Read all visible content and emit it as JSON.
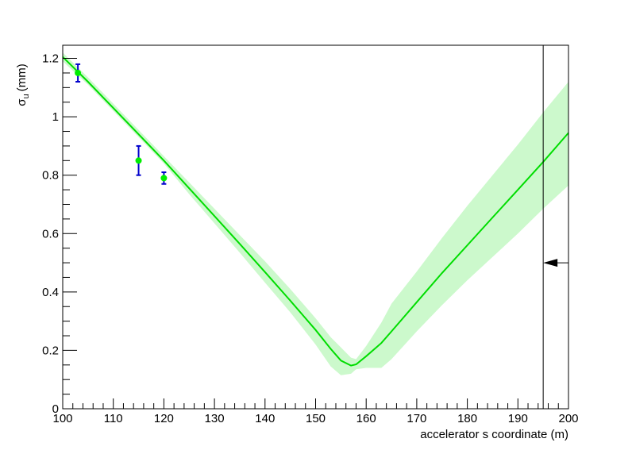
{
  "chart_data": {
    "type": "line",
    "title": "",
    "xlabel": "accelerator s coordinate (m)",
    "ylabel": "σ",
    "ylabel_sub": "u",
    "ylabel_unit": "(mm)",
    "xlim": [
      100,
      200
    ],
    "ylim": [
      0,
      1.245
    ],
    "x_ticks": [
      "100",
      "110",
      "120",
      "130",
      "140",
      "150",
      "160",
      "170",
      "180",
      "190",
      "200"
    ],
    "y_ticks": [
      "0",
      "0.2",
      "0.4",
      "0.6",
      "0.8",
      "1",
      "1.2"
    ],
    "grid": false,
    "legend": "none",
    "colors": {
      "fit_line": "#00dd00",
      "band_fill": "#ccf9cc",
      "points": "#00ee00",
      "error_bars": "#0000cc",
      "marker_line": "#000000"
    },
    "series": [
      {
        "kind": "fit",
        "x": [
          100,
          105,
          110,
          115,
          120,
          125,
          130,
          135,
          140,
          145,
          150,
          153,
          155,
          157,
          158,
          160,
          163,
          165,
          170,
          175,
          180,
          185,
          190,
          195,
          200
        ],
        "y": [
          1.205,
          1.12,
          1.03,
          0.94,
          0.85,
          0.755,
          0.66,
          0.565,
          0.468,
          0.37,
          0.27,
          0.205,
          0.165,
          0.148,
          0.152,
          0.18,
          0.225,
          0.265,
          0.365,
          0.465,
          0.56,
          0.655,
          0.75,
          0.845,
          0.945
        ],
        "band_low": [
          1.19,
          1.11,
          1.02,
          0.93,
          0.84,
          0.735,
          0.635,
          0.535,
          0.432,
          0.33,
          0.22,
          0.145,
          0.115,
          0.12,
          0.135,
          0.14,
          0.14,
          0.17,
          0.265,
          0.355,
          0.44,
          0.52,
          0.6,
          0.685,
          0.765
        ],
        "band_high": [
          1.22,
          1.135,
          1.045,
          0.955,
          0.865,
          0.775,
          0.685,
          0.595,
          0.505,
          0.41,
          0.31,
          0.245,
          0.21,
          0.175,
          0.17,
          0.215,
          0.295,
          0.36,
          0.47,
          0.585,
          0.695,
          0.8,
          0.905,
          1.015,
          1.12
        ]
      },
      {
        "kind": "measurements",
        "x": [
          103,
          115,
          120
        ],
        "y": [
          1.15,
          0.85,
          0.79
        ],
        "err": [
          0.03,
          0.05,
          0.02
        ]
      }
    ],
    "vertical_marker": {
      "x": 195
    },
    "arrow_marker": {
      "y": 0.5,
      "x_from": 200,
      "x_to": 195
    }
  }
}
